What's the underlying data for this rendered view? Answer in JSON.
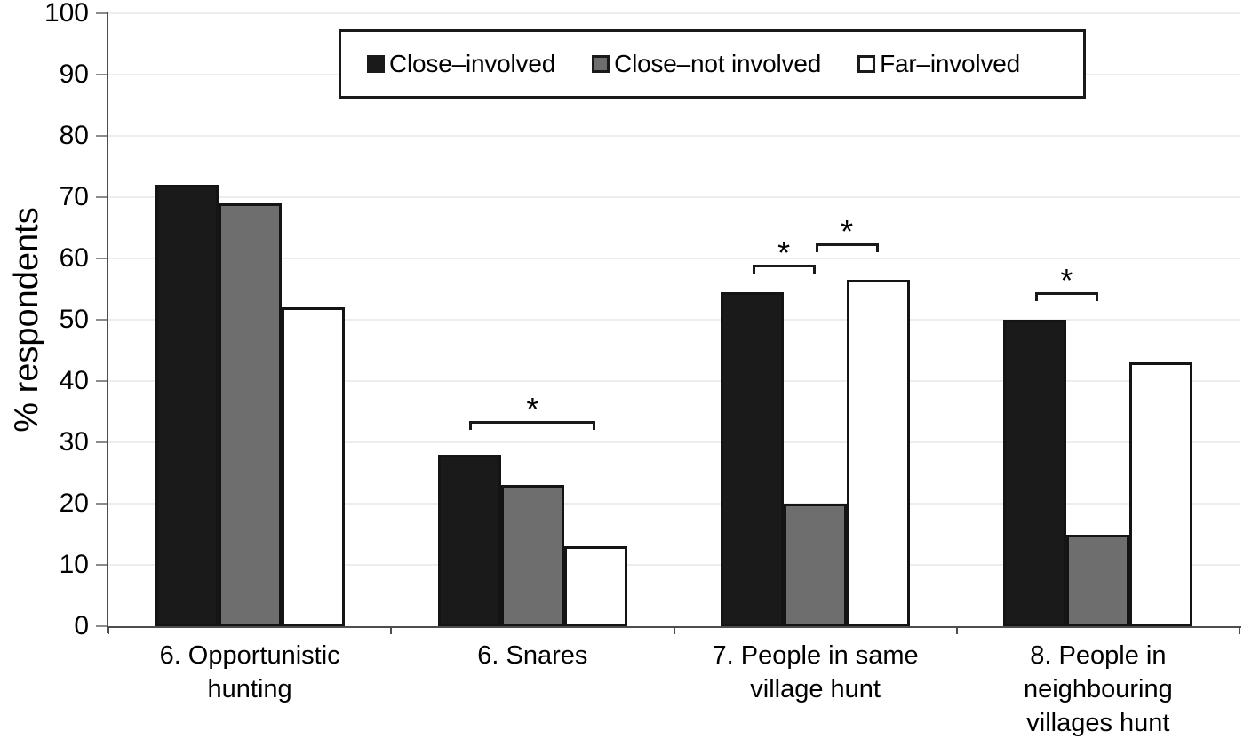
{
  "chart_data": {
    "type": "bar",
    "title": "",
    "xlabel": "",
    "ylabel": "% respondents",
    "ylim": [
      0,
      100
    ],
    "ytick_step": 10,
    "grid": true,
    "legend_position": "top-center",
    "categories": [
      "6. Opportunistic\nhunting",
      "6. Snares",
      "7. People in same\nvillage hunt",
      "8. People in\nneighbouring\nvillages hunt"
    ],
    "series": [
      {
        "name": "Close–involved",
        "color": "#1a1a1a",
        "values": [
          72,
          28,
          54.5,
          50
        ]
      },
      {
        "name": "Close–not involved",
        "color": "#6e6e6e",
        "values": [
          69,
          23,
          20,
          15
        ]
      },
      {
        "name": "Far–involved",
        "color": "#ffffff",
        "values": [
          52,
          13,
          56.5,
          43
        ]
      }
    ],
    "bar_border_color": "#141414",
    "axis_color": "#4d4d4d",
    "gridline_color": "#ededed",
    "significance_brackets": [
      {
        "category_index": 1,
        "from_series": 0,
        "to_series": 2,
        "y": 33.5,
        "label": "*"
      },
      {
        "category_index": 2,
        "from_series": 0,
        "to_series": 1,
        "y": 59,
        "label": "*"
      },
      {
        "category_index": 2,
        "from_series": 1,
        "to_series": 2,
        "y": 62.5,
        "label": "*"
      },
      {
        "category_index": 3,
        "from_series": 0,
        "to_series": 1,
        "y": 54.5,
        "label": "*"
      }
    ]
  }
}
